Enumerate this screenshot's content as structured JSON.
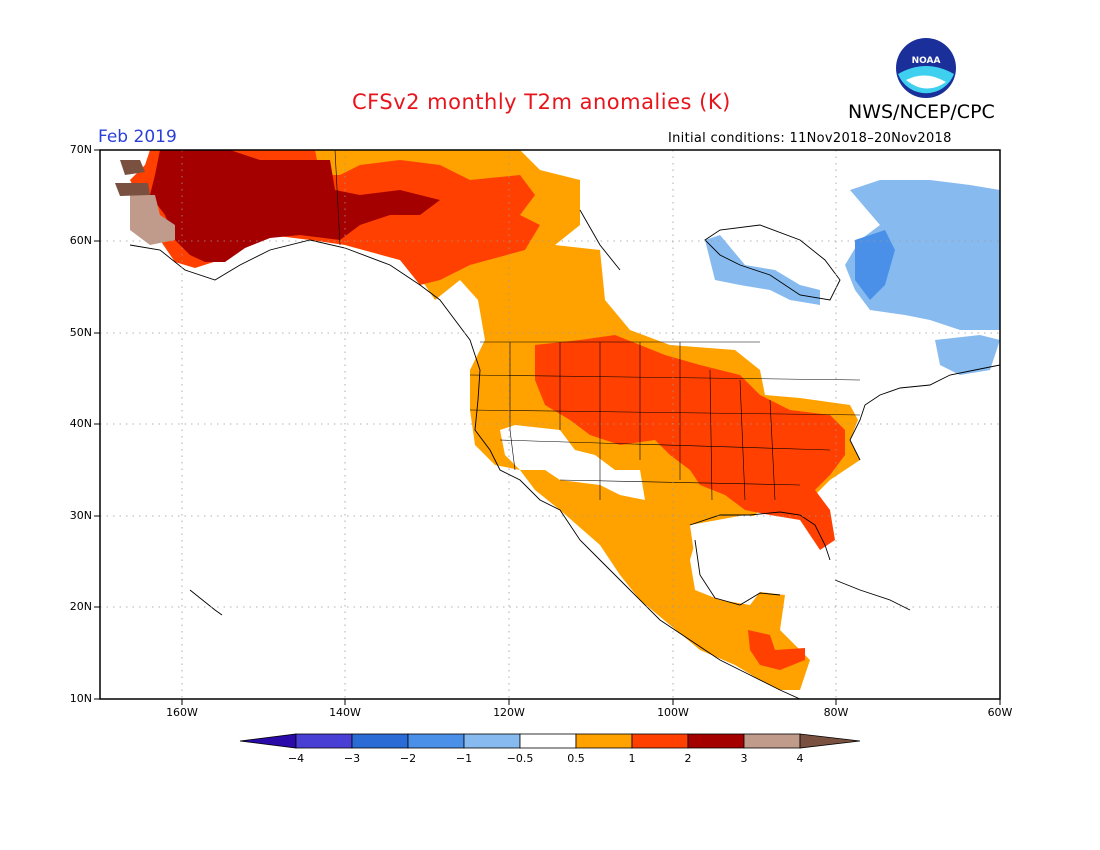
{
  "header": {
    "title": "CFSv2 monthly T2m anomalies (K)",
    "agency": "NWS/NCEP/CPC",
    "valid_month": "Feb 2019",
    "initial_conditions": "Initial conditions: 11Nov2018–20Nov2018",
    "logo_text": "NOAA"
  },
  "map": {
    "lat_labels": [
      "70N",
      "60N",
      "50N",
      "40N",
      "30N",
      "20N",
      "10N"
    ],
    "lon_labels": [
      "160W",
      "140W",
      "120W",
      "100W",
      "80W",
      "60W"
    ],
    "colors": {
      "frame": "#000000",
      "gridline": "#9a9a9a",
      "coast": "#000000"
    }
  },
  "colorbar": {
    "labels": [
      "−4",
      "−3",
      "−2",
      "−1",
      "−0.5",
      "0.5",
      "1",
      "2",
      "3",
      "4"
    ],
    "colors": [
      "#2a0aa8",
      "#4a3fd4",
      "#2a6bd6",
      "#4a90e8",
      "#87bbf0",
      "#ffffff",
      "#ffa200",
      "#ff4000",
      "#a40000",
      "#c09a8a",
      "#7a5040"
    ]
  }
}
